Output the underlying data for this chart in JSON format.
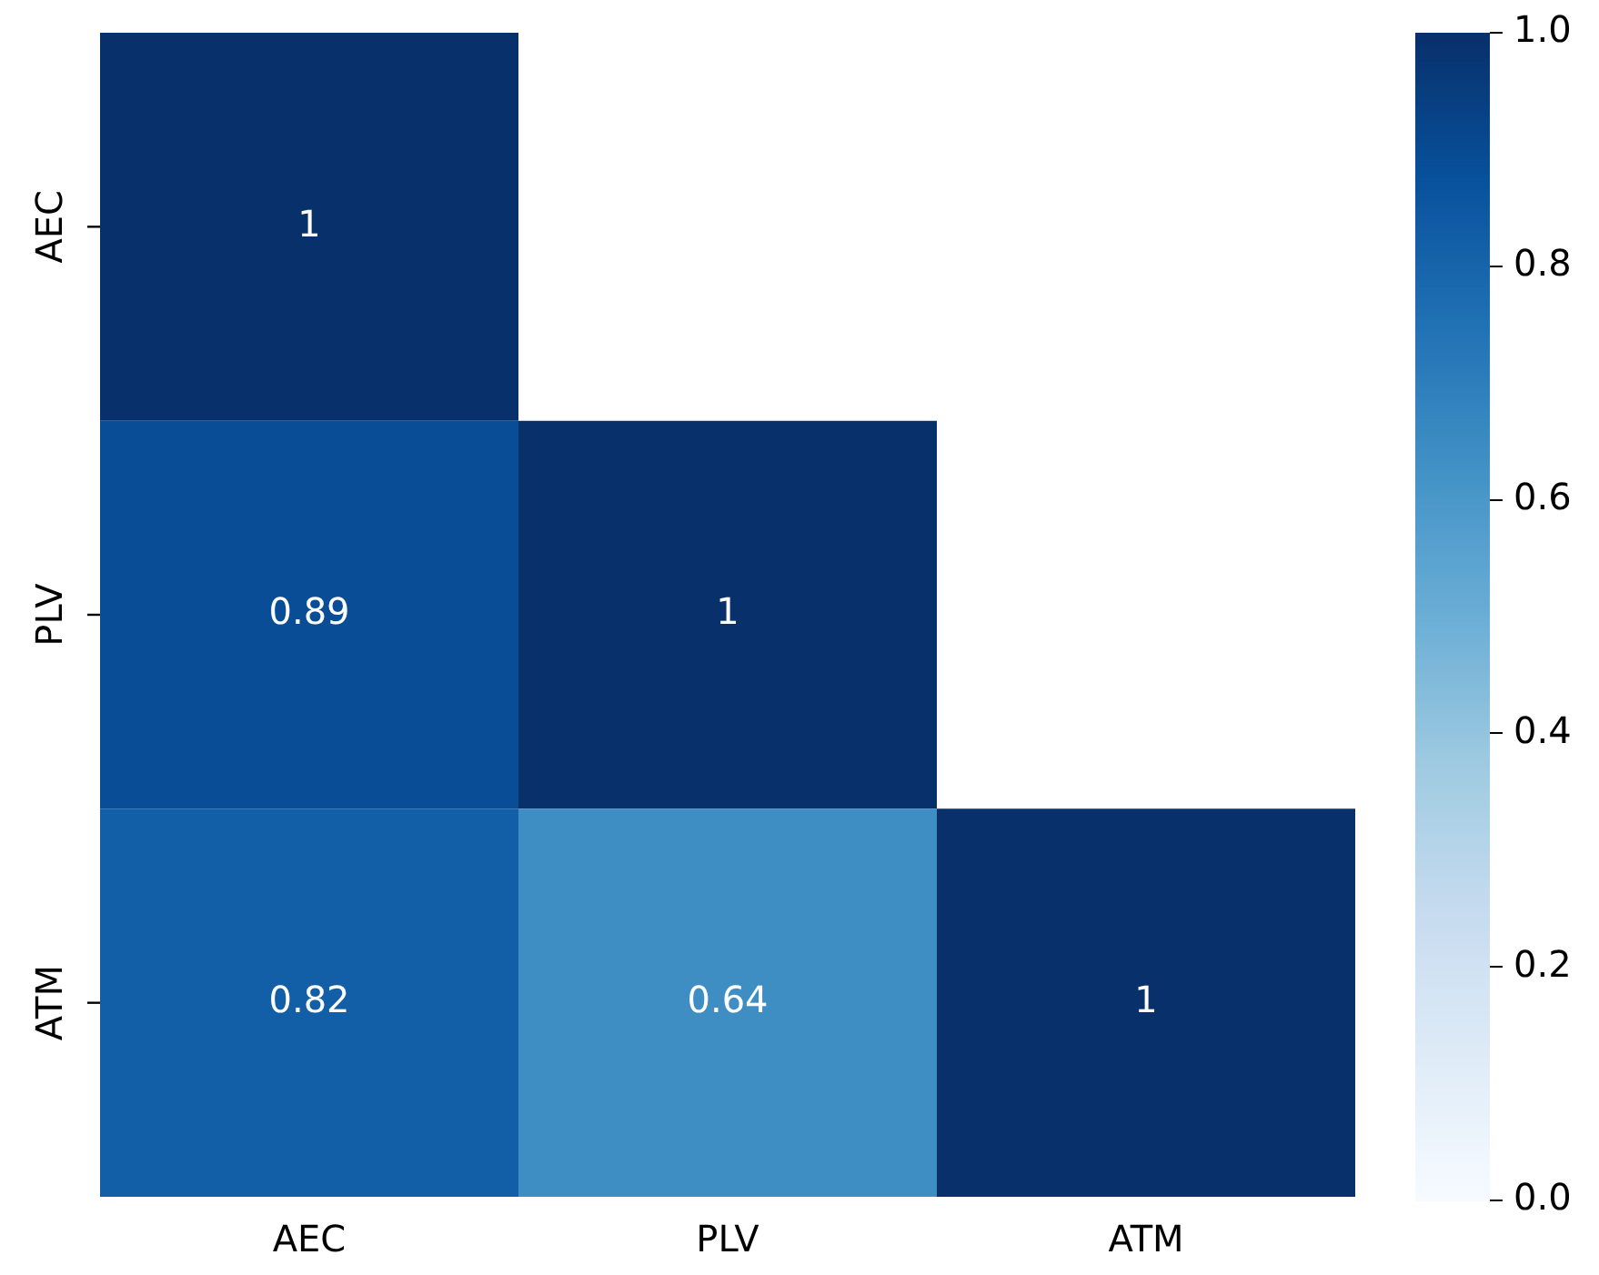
{
  "chart_data": {
    "type": "heatmap",
    "categories": [
      "AEC",
      "PLV",
      "ATM"
    ],
    "y_categories": [
      "AEC",
      "PLV",
      "ATM"
    ],
    "cells": [
      [
        1,
        null,
        null
      ],
      [
        0.89,
        1,
        null
      ],
      [
        0.82,
        0.64,
        1
      ]
    ],
    "data_labels": true,
    "clim": [
      0,
      1
    ],
    "cticks": [
      {
        "value": 0,
        "label": "0.0"
      },
      {
        "value": 0.2,
        "label": "0.2"
      },
      {
        "value": 0.4,
        "label": "0.4"
      },
      {
        "value": 0.6,
        "label": "0.6"
      },
      {
        "value": 0.8,
        "label": "0.8"
      },
      {
        "value": 1,
        "label": "1.0"
      }
    ]
  }
}
